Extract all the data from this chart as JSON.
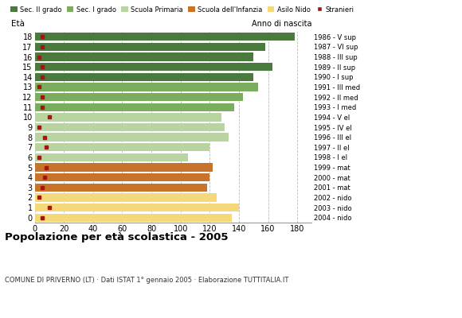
{
  "ages": [
    18,
    17,
    16,
    15,
    14,
    13,
    12,
    11,
    10,
    9,
    8,
    7,
    6,
    5,
    4,
    3,
    2,
    1,
    0
  ],
  "anno_nascita": [
    "1986 - V sup",
    "1987 - VI sup",
    "1988 - III sup",
    "1989 - II sup",
    "1990 - I sup",
    "1991 - III med",
    "1992 - II med",
    "1993 - I med",
    "1994 - V el",
    "1995 - IV el",
    "1996 - III el",
    "1997 - II el",
    "1998 - I el",
    "1999 - mat",
    "2000 - mat",
    "2001 - mat",
    "2002 - nido",
    "2003 - nido",
    "2004 - nido"
  ],
  "bar_values": [
    178,
    158,
    150,
    163,
    150,
    153,
    143,
    137,
    128,
    130,
    133,
    120,
    105,
    122,
    120,
    118,
    125,
    140,
    135
  ],
  "stranieri_values": [
    5,
    5,
    3,
    5,
    5,
    3,
    5,
    5,
    10,
    3,
    7,
    8,
    3,
    8,
    7,
    5,
    3,
    10,
    5
  ],
  "bar_colors": [
    "#4a7a3d",
    "#4a7a3d",
    "#4a7a3d",
    "#4a7a3d",
    "#4a7a3d",
    "#7aad5e",
    "#7aad5e",
    "#7aad5e",
    "#b8d4a0",
    "#b8d4a0",
    "#b8d4a0",
    "#b8d4a0",
    "#b8d4a0",
    "#c8732a",
    "#c8732a",
    "#c8732a",
    "#f5d87a",
    "#f5d87a",
    "#f5d87a"
  ],
  "legend_labels": [
    "Sec. II grado",
    "Sec. I grado",
    "Scuola Primaria",
    "Scuola dell'Infanzia",
    "Asilo Nido",
    "Stranieri"
  ],
  "legend_colors": [
    "#4a7a3d",
    "#7aad5e",
    "#b8d4a0",
    "#c8732a",
    "#f5d87a",
    "#aa1111"
  ],
  "xlim": [
    0,
    190
  ],
  "xticks": [
    0,
    20,
    40,
    60,
    80,
    100,
    120,
    140,
    160,
    180
  ],
  "title": "Popolazione per età scolastica - 2005",
  "subtitle": "COMUNE DI PRIVERNO (LT) · Dati ISTAT 1° gennaio 2005 · Elaborazione TUTTITALIA.IT",
  "ylabel": "Età",
  "ylabel2": "Anno di nascita",
  "stranieri_color": "#aa1111",
  "bar_height": 0.82,
  "grid_color": "#bbbbbb",
  "bg_color": "#ffffff"
}
